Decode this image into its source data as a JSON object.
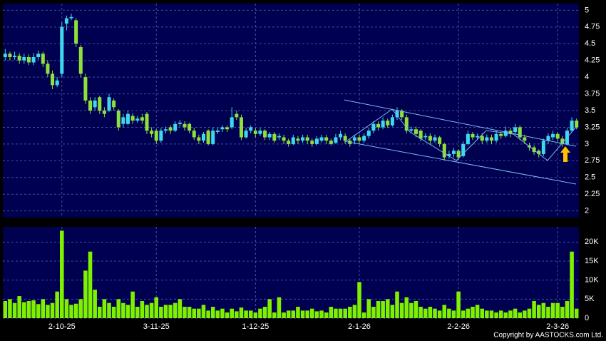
{
  "chart_data": {
    "type": "candlestick",
    "categories": [
      null,
      null,
      null,
      null,
      null,
      null,
      null,
      null,
      null,
      null,
      null,
      null,
      "2-10-25",
      null,
      null,
      null,
      null,
      null,
      null,
      null,
      null,
      null,
      null,
      null,
      null,
      null,
      null,
      null,
      null,
      null,
      null,
      null,
      "3-11-25",
      null,
      null,
      null,
      null,
      null,
      null,
      null,
      null,
      null,
      null,
      null,
      null,
      null,
      null,
      null,
      null,
      null,
      null,
      null,
      null,
      "1-12-25",
      null,
      null,
      null,
      null,
      null,
      null,
      null,
      null,
      null,
      null,
      null,
      null,
      null,
      null,
      null,
      null,
      null,
      null,
      null,
      null,
      null,
      "2-1-26",
      null,
      null,
      null,
      null,
      null,
      null,
      null,
      null,
      null,
      null,
      null,
      null,
      null,
      null,
      null,
      null,
      null,
      null,
      null,
      null,
      "2-2-26",
      null,
      null,
      null,
      null,
      null,
      null,
      null,
      null,
      null,
      null,
      null,
      null,
      null,
      null,
      null,
      null,
      null,
      null,
      null,
      null,
      "2-3-26",
      null,
      null,
      null,
      null
    ],
    "open": [
      4.3,
      4.35,
      4.3,
      4.32,
      4.25,
      4.3,
      4.22,
      4.3,
      4.35,
      4.2,
      4.05,
      3.88,
      4.05,
      4.8,
      4.88,
      4.85,
      4.45,
      4.0,
      3.65,
      3.55,
      3.7,
      3.5,
      3.5,
      3.65,
      3.5,
      3.3,
      3.3,
      3.42,
      3.35,
      3.4,
      3.45,
      3.2,
      3.2,
      3.05,
      3.2,
      3.25,
      3.2,
      3.3,
      3.3,
      3.3,
      3.2,
      3.1,
      3.05,
      3.2,
      3.0,
      3.18,
      3.22,
      3.25,
      3.25,
      3.45,
      3.4,
      3.1,
      3.2,
      3.2,
      3.15,
      3.2,
      3.1,
      3.15,
      3.1,
      3.1,
      3.05,
      3.0,
      3.08,
      3.05,
      3.1,
      3.05,
      3.0,
      3.05,
      3.1,
      3.05,
      3.02,
      3.1,
      3.12,
      3.05,
      3.05,
      3.1,
      3.05,
      3.12,
      3.2,
      3.3,
      3.25,
      3.35,
      3.28,
      3.4,
      3.5,
      3.4,
      3.2,
      3.22,
      3.2,
      3.1,
      3.12,
      3.05,
      3.1,
      3.0,
      2.82,
      2.85,
      2.9,
      2.82,
      3.0,
      3.15,
      3.1,
      3.12,
      3.05,
      3.1,
      3.05,
      3.15,
      3.12,
      3.2,
      3.18,
      3.25,
      3.1,
      2.98,
      2.95,
      2.9,
      2.85,
      3.05,
      3.1,
      3.15,
      3.08,
      3.0,
      3.2,
      3.35
    ],
    "high": [
      4.42,
      4.38,
      4.38,
      4.36,
      4.35,
      4.34,
      4.36,
      4.4,
      4.38,
      4.25,
      4.1,
      4.0,
      4.82,
      4.92,
      4.95,
      4.88,
      4.48,
      4.05,
      3.7,
      3.7,
      3.72,
      3.55,
      3.75,
      3.68,
      3.52,
      3.45,
      3.5,
      3.46,
      3.42,
      3.45,
      3.48,
      3.25,
      3.22,
      3.24,
      3.26,
      3.28,
      3.34,
      3.36,
      3.34,
      3.32,
      3.24,
      3.14,
      3.18,
      3.22,
      3.25,
      3.24,
      3.28,
      3.28,
      3.55,
      3.5,
      3.44,
      3.24,
      3.28,
      3.24,
      3.24,
      3.22,
      3.18,
      3.18,
      3.16,
      3.14,
      3.08,
      3.14,
      3.12,
      3.14,
      3.14,
      3.08,
      3.12,
      3.14,
      3.14,
      3.08,
      3.15,
      3.2,
      3.16,
      3.08,
      3.14,
      3.14,
      3.16,
      3.24,
      3.34,
      3.34,
      3.4,
      3.38,
      3.44,
      3.55,
      3.52,
      3.44,
      3.26,
      3.26,
      3.22,
      3.16,
      3.16,
      3.14,
      3.12,
      3.02,
      2.9,
      2.94,
      2.92,
      3.04,
      3.2,
      3.18,
      3.16,
      3.16,
      3.14,
      3.14,
      3.2,
      3.18,
      3.26,
      3.24,
      3.3,
      3.28,
      3.14,
      3.02,
      2.98,
      2.92,
      3.08,
      3.16,
      3.2,
      3.18,
      3.12,
      3.24,
      3.4,
      3.38
    ],
    "low": [
      4.25,
      4.25,
      4.26,
      4.2,
      4.2,
      4.18,
      4.18,
      4.26,
      4.15,
      4.0,
      3.82,
      3.85,
      4.0,
      4.7,
      4.85,
      4.45,
      4.0,
      3.6,
      3.45,
      3.5,
      3.45,
      3.4,
      3.48,
      3.5,
      3.2,
      3.25,
      3.28,
      3.3,
      3.32,
      3.3,
      3.15,
      3.1,
      3.0,
      3.02,
      3.16,
      3.15,
      3.18,
      3.26,
      3.2,
      3.16,
      3.06,
      3.0,
      3.02,
      2.98,
      2.98,
      3.15,
      3.18,
      3.18,
      3.22,
      3.36,
      3.06,
      3.08,
      3.16,
      3.1,
      3.12,
      3.06,
      3.06,
      3.02,
      3.06,
      3.0,
      2.96,
      2.98,
      3.0,
      3.02,
      3.0,
      2.96,
      2.98,
      3.02,
      3.0,
      2.98,
      3.0,
      3.06,
      3.0,
      2.96,
      3.0,
      3.0,
      3.02,
      3.08,
      3.16,
      3.2,
      3.22,
      3.24,
      3.26,
      3.36,
      3.36,
      3.16,
      3.16,
      3.1,
      3.04,
      3.06,
      3.0,
      3.02,
      2.96,
      2.76,
      2.78,
      2.8,
      2.76,
      2.8,
      2.98,
      3.06,
      3.06,
      3.0,
      3.02,
      3.0,
      3.02,
      3.08,
      3.1,
      3.1,
      3.14,
      3.06,
      3.0,
      2.9,
      2.84,
      2.8,
      2.82,
      3.0,
      3.06,
      3.04,
      2.96,
      2.98,
      3.18,
      3.22
    ],
    "close": [
      4.35,
      4.3,
      4.32,
      4.25,
      4.3,
      4.22,
      4.3,
      4.35,
      4.2,
      4.05,
      3.88,
      3.95,
      4.75,
      4.88,
      4.9,
      4.5,
      4.05,
      3.65,
      3.5,
      3.65,
      3.5,
      3.45,
      3.7,
      3.55,
      3.25,
      3.4,
      3.45,
      3.35,
      3.38,
      3.35,
      3.2,
      3.15,
      3.05,
      3.2,
      3.22,
      3.2,
      3.3,
      3.32,
      3.25,
      3.2,
      3.1,
      3.05,
      3.15,
      3.0,
      3.2,
      3.2,
      3.25,
      3.22,
      3.4,
      3.4,
      3.1,
      3.2,
      3.25,
      3.15,
      3.2,
      3.1,
      3.15,
      3.05,
      3.12,
      3.05,
      3.0,
      3.1,
      3.05,
      3.1,
      3.05,
      3.0,
      3.08,
      3.1,
      3.05,
      3.0,
      3.1,
      3.15,
      3.05,
      3.0,
      3.1,
      3.05,
      3.12,
      3.2,
      3.3,
      3.25,
      3.35,
      3.28,
      3.4,
      3.5,
      3.4,
      3.2,
      3.22,
      3.15,
      3.08,
      3.12,
      3.05,
      3.1,
      3.0,
      2.8,
      2.85,
      2.9,
      2.8,
      3.0,
      3.15,
      3.1,
      3.12,
      3.05,
      3.1,
      3.05,
      3.15,
      3.12,
      3.2,
      3.15,
      3.25,
      3.1,
      3.05,
      2.95,
      2.88,
      2.85,
      3.05,
      3.12,
      3.15,
      3.08,
      3.0,
      3.2,
      3.35,
      3.25
    ],
    "up_color": "#3fd7ee",
    "down_color": "#8fe03a",
    "ylim": [
      1.9,
      5.1
    ],
    "yticks": [
      2,
      2.25,
      2.5,
      2.75,
      3,
      3.25,
      3.5,
      3.75,
      4,
      4.25,
      4.5,
      4.75,
      5
    ],
    "grid": true,
    "volume": {
      "type": "bar",
      "values": [
        4500,
        5000,
        4000,
        5800,
        4200,
        4500,
        4700,
        3700,
        5000,
        3500,
        4000,
        7000,
        23000,
        5000,
        3500,
        3800,
        5000,
        12500,
        17500,
        7500,
        3000,
        5000,
        4000,
        3000,
        5000,
        4000,
        3500,
        7000,
        3000,
        4500,
        3500,
        4000,
        5500,
        3000,
        3500,
        3500,
        4000,
        5000,
        3000,
        3000,
        2500,
        2500,
        3500,
        2000,
        3000,
        2000,
        2500,
        1500,
        2500,
        1800,
        2800,
        2000,
        2000,
        1500,
        2500,
        3000,
        5000,
        1500,
        5500,
        1500,
        2000,
        2000,
        3000,
        2000,
        2000,
        2500,
        1800,
        2000,
        1500,
        3000,
        2500,
        2500,
        2500,
        3000,
        3500,
        9500,
        1500,
        5000,
        3000,
        4500,
        4500,
        5000,
        3500,
        7000,
        4000,
        5500,
        4000,
        4500,
        3000,
        2500,
        3000,
        2500,
        2000,
        3500,
        2500,
        2000,
        7000,
        2000,
        2500,
        3000,
        3500,
        2500,
        2000,
        2000,
        1500,
        2000,
        1500,
        2000,
        2500,
        1500,
        2000,
        2500,
        4500,
        3500,
        4000,
        3000,
        4000,
        4000,
        3000,
        4500,
        17500,
        2500
      ],
      "color": "#7ff000",
      "ylim": [
        0,
        24000
      ],
      "yticks": [
        0,
        {
          "value": 5000,
          "label": "5K"
        },
        {
          "value": 10000,
          "label": "10K"
        },
        {
          "value": 15000,
          "label": "15K"
        },
        {
          "value": 20000,
          "label": "20K"
        }
      ]
    },
    "annotation": "Copyright by AASTOCKS.com Ltd."
  }
}
